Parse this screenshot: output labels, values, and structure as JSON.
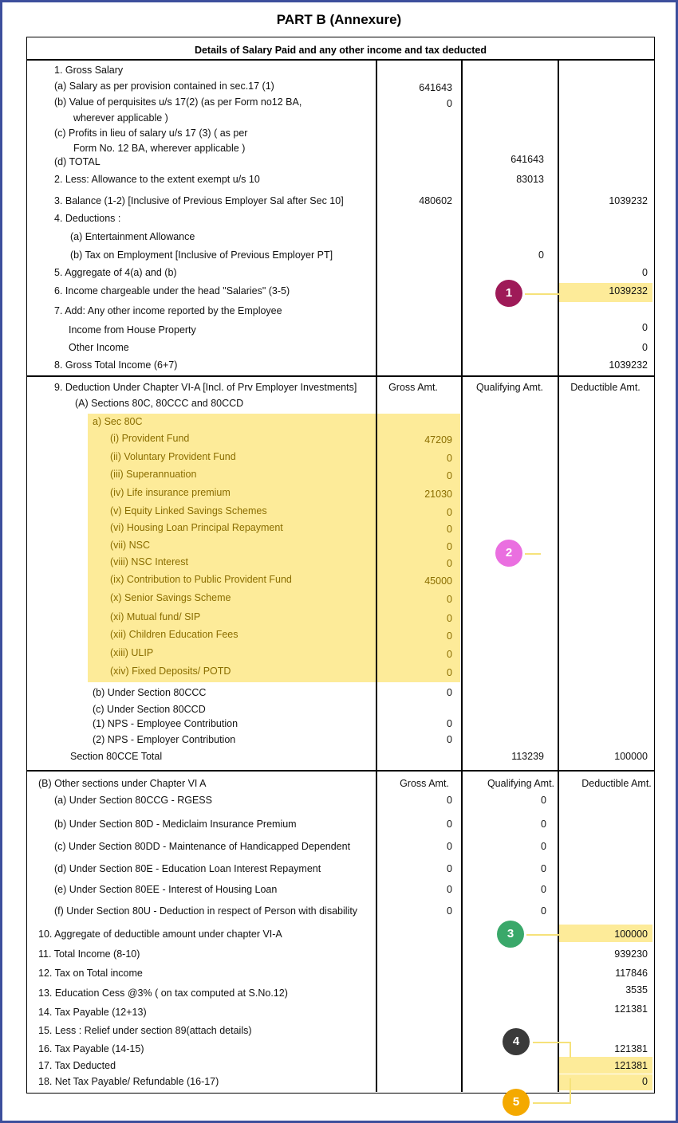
{
  "title": "PART B (Annexure)",
  "header": "Details of Salary Paid and any other income  and tax deducted",
  "badges": [
    "1",
    "2",
    "3",
    "4",
    "5"
  ],
  "rows": [
    {
      "label": "1. Gross Salary"
    },
    {
      "label": "(a) Salary as per provision contained in sec.17 (1)",
      "gross": 641643
    },
    {
      "label": "(b) Value of perquisites u/s 17(2) (as per Form no12 BA,",
      "gross": 0
    },
    {
      "label": "wherever applicable )"
    },
    {
      "label": "(c) Profits in lieu of salary u/s 17 (3) ( as per"
    },
    {
      "label": "Form No. 12 BA, wherever applicable )"
    },
    {
      "label": "(d) TOTAL",
      "qualifying": 641643
    },
    {
      "label": "2. Less: Allowance to the extent exempt u/s 10",
      "qualifying": 83013
    },
    {
      "label": "3. Balance (1-2) [Inclusive of Previous Employer Sal after Sec 10]",
      "gross": 480602,
      "deductible": 1039232
    },
    {
      "label": "4. Deductions :"
    },
    {
      "label": "(a) Entertainment Allowance"
    },
    {
      "label": "(b) Tax on Employment  [Inclusive of Previous Employer PT]",
      "qualifying": 0
    },
    {
      "label": "5. Aggregate of 4(a) and (b)",
      "deductible": 0
    },
    {
      "label": "6. Income chargeable under the head \"Salaries\"  (3-5)",
      "deductible": 1039232
    },
    {
      "label": "7. Add: Any other income reported by the Employee"
    },
    {
      "label": "Income from House Property",
      "deductible": 0
    },
    {
      "label": "Other Income",
      "deductible": 0
    },
    {
      "label": "8. Gross Total Income (6+7)",
      "deductible": 1039232
    },
    {
      "label": "9. Deduction Under Chapter VI-A [Incl. of Prv Employer Investments]",
      "gross": "Gross Amt.",
      "qualifying": "Qualifying Amt.",
      "deductible": "Deductible Amt."
    },
    {
      "label": "(A) Sections 80C, 80CCC and 80CCD"
    },
    {
      "label": "a) Sec 80C"
    },
    {
      "label": "(i)  Provident Fund",
      "gross": 47209
    },
    {
      "label": "(ii) Voluntary Provident Fund",
      "gross": 0
    },
    {
      "label": "(iii) Superannuation",
      "gross": 0
    },
    {
      "label": "(iv) Life insurance premium",
      "gross": 21030
    },
    {
      "label": "(v) Equity Linked Savings Schemes",
      "gross": 0
    },
    {
      "label": "(vi) Housing Loan Principal Repayment",
      "gross": 0
    },
    {
      "label": "(vii) NSC",
      "gross": 0
    },
    {
      "label": "(viii) NSC Interest",
      "gross": 0
    },
    {
      "label": "(ix) Contribution to Public Provident Fund",
      "gross": 45000
    },
    {
      "label": "(x) Senior Savings Scheme",
      "gross": 0
    },
    {
      "label": "(xi) Mutual fund/ SIP",
      "gross": 0
    },
    {
      "label": "(xii) Children Education Fees",
      "gross": 0
    },
    {
      "label": "(xiii) ULIP",
      "gross": 0
    },
    {
      "label": "(xiv) Fixed Deposits/ POTD",
      "gross": 0
    },
    {
      "label": "(b) Under Section 80CCC",
      "gross": 0
    },
    {
      "label": "(c) Under Section 80CCD"
    },
    {
      "label": "(1) NPS - Employee Contribution",
      "gross": 0
    },
    {
      "label": "(2) NPS - Employer Contribution",
      "gross": 0
    },
    {
      "label": "Section 80CCE Total",
      "qualifying": 113239,
      "deductible": 100000
    },
    {
      "label": "(B) Other sections  under Chapter VI A",
      "gross": "Gross Amt.",
      "qualifying": "Qualifying Amt.",
      "deductible": "Deductible Amt."
    },
    {
      "label": "(a) Under Section 80CCG - RGESS",
      "gross": 0,
      "qualifying": 0
    },
    {
      "label": "(b) Under Section 80D - Mediclaim Insurance Premium",
      "gross": 0,
      "qualifying": 0
    },
    {
      "label": "(c) Under Section 80DD - Maintenance of Handicapped Dependent",
      "gross": 0,
      "qualifying": 0
    },
    {
      "label": "(d) Under Section 80E - Education Loan Interest Repayment",
      "gross": 0,
      "qualifying": 0
    },
    {
      "label": "(e) Under Section 80EE - Interest of Housing Loan",
      "gross": 0,
      "qualifying": 0
    },
    {
      "label": "(f) Under Section 80U - Deduction in respect of Person with disability",
      "gross": 0,
      "qualifying": 0
    },
    {
      "label": "10. Aggregate of deductible amount under chapter VI-A",
      "deductible": 100000
    },
    {
      "label": "11. Total Income (8-10)",
      "deductible": 939230
    },
    {
      "label": "12. Tax on Total income",
      "deductible": 117846
    },
    {
      "label": "13. Education Cess @3% ( on  tax computed at S.No.12)",
      "deductible": 3535
    },
    {
      "label": "14. Tax Payable (12+13)",
      "deductible": 121381
    },
    {
      "label": "15. Less : Relief under section 89(attach details)"
    },
    {
      "label": "16. Tax Payable (14-15)",
      "deductible": 121381
    },
    {
      "label": "17. Tax Deducted",
      "deductible": 121381
    },
    {
      "label": "18. Net Tax Payable/ Refundable (16-17)",
      "deductible": 0
    }
  ]
}
